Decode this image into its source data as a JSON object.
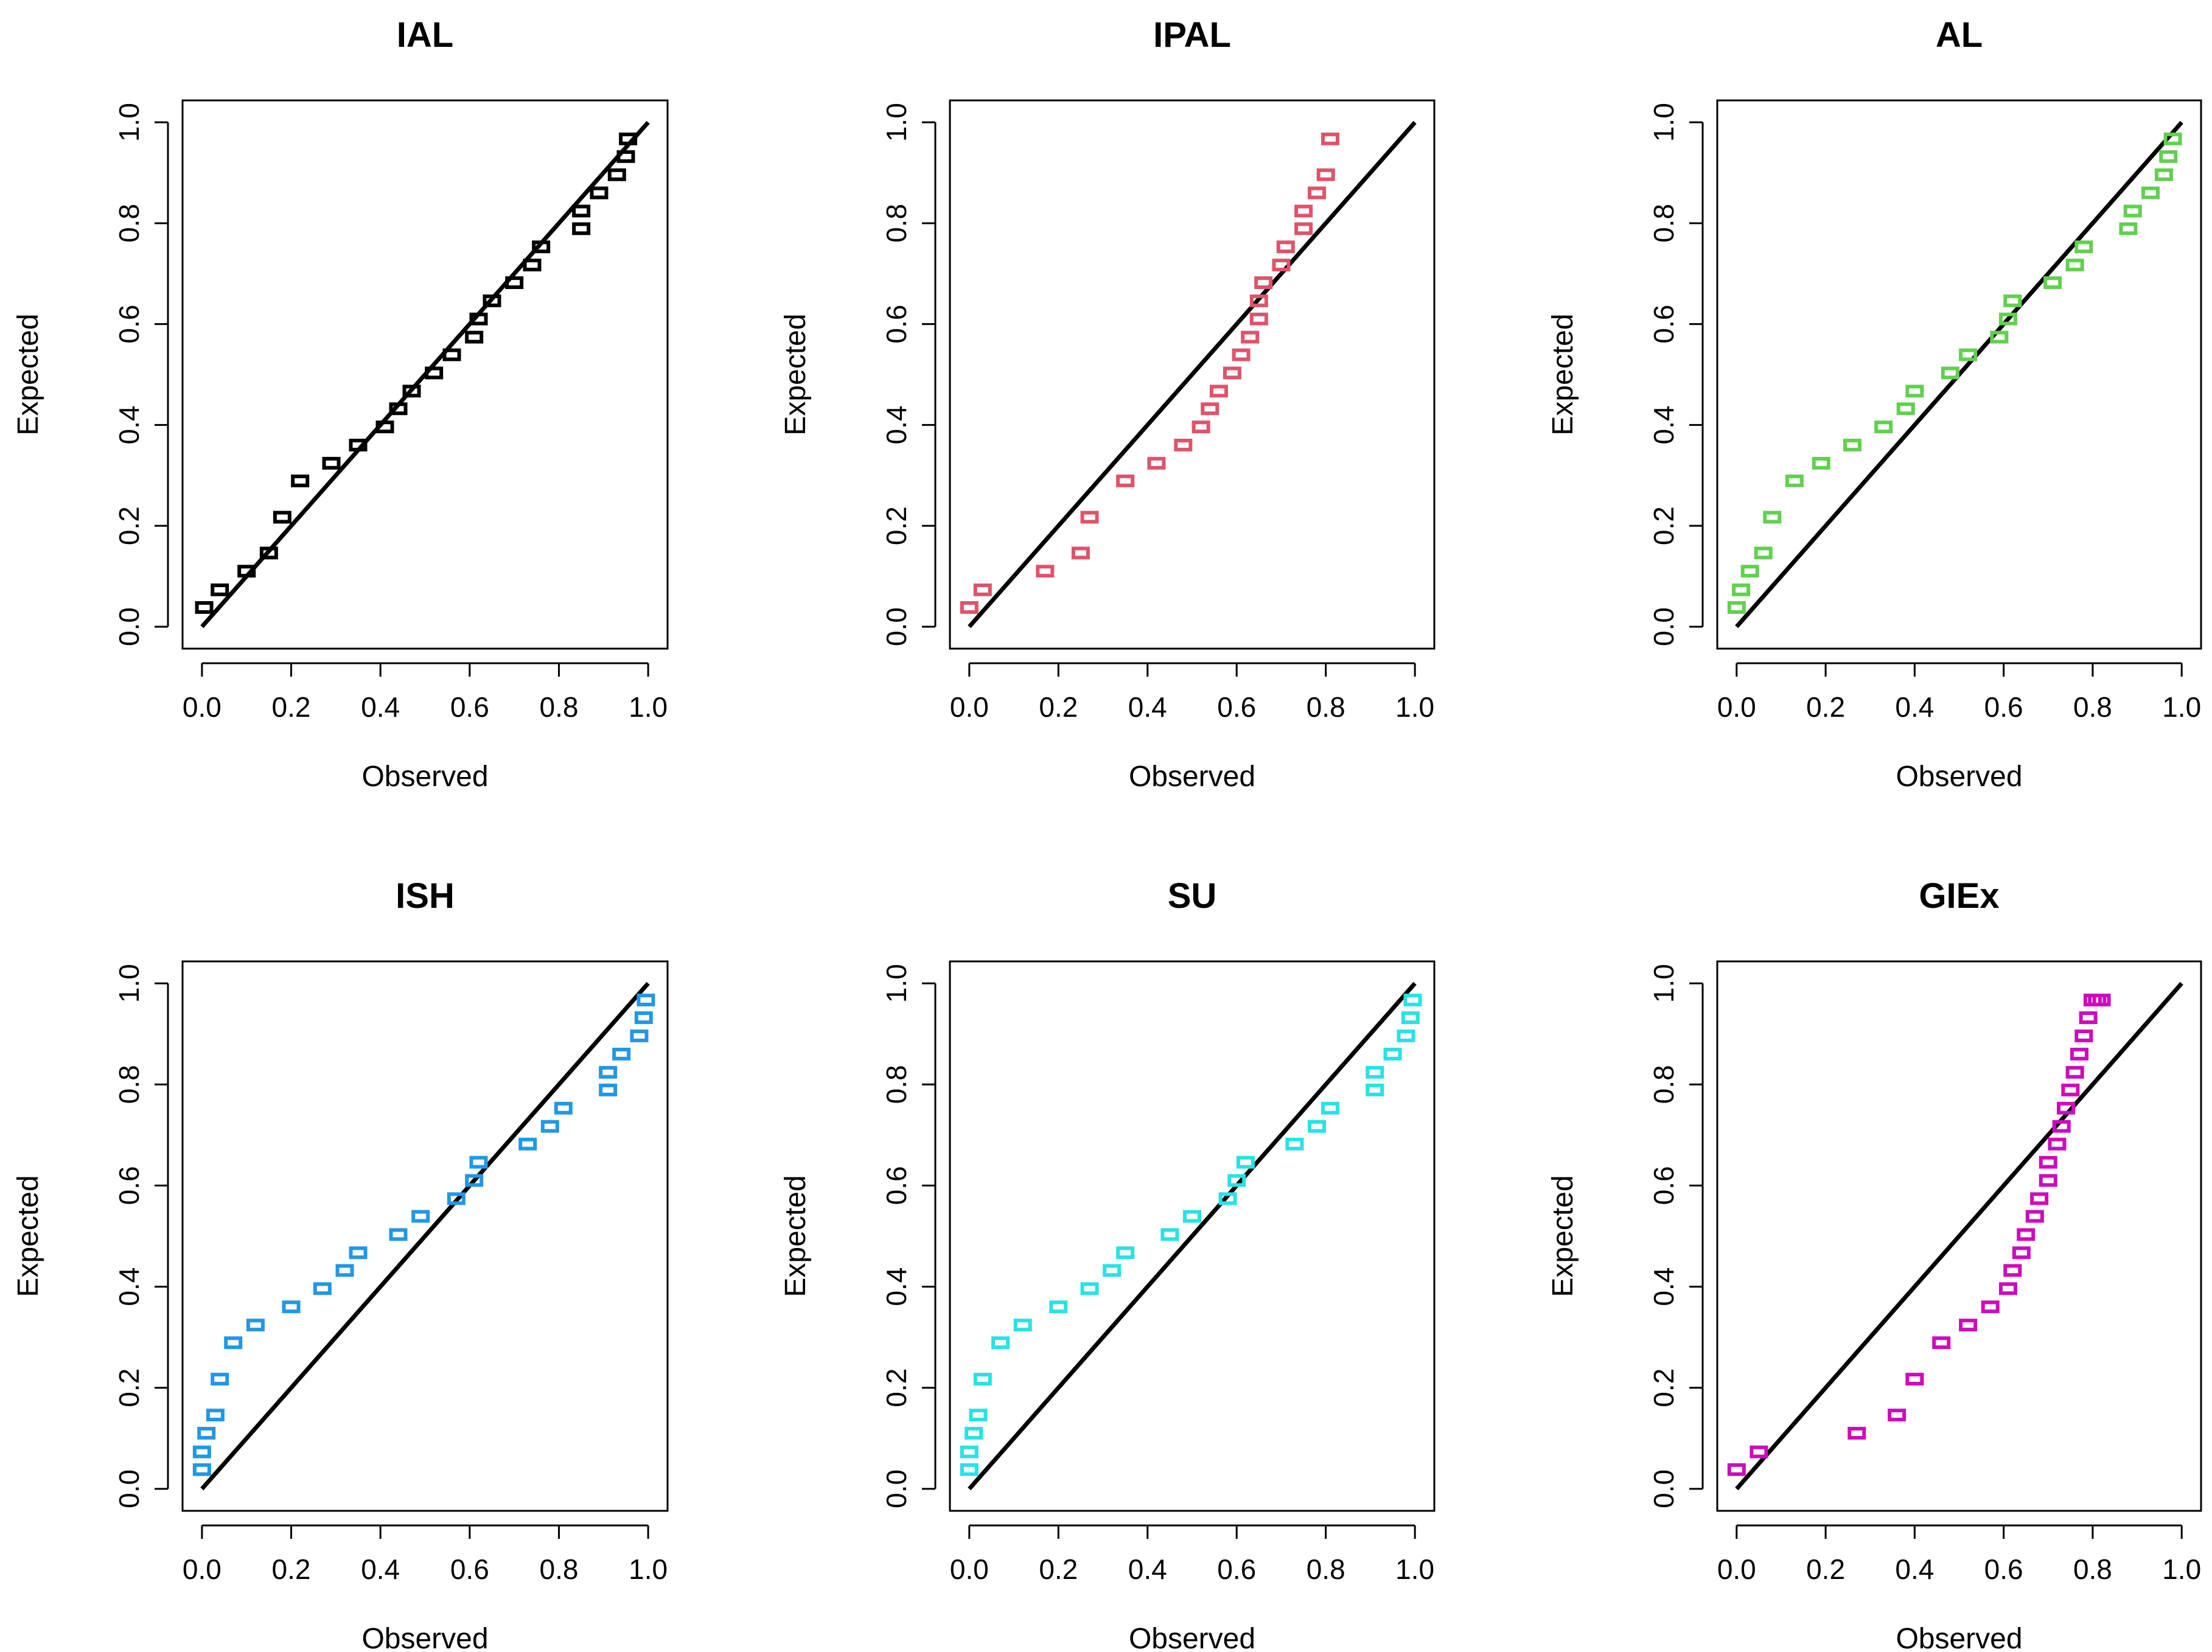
{
  "figure": {
    "x_label": "Observed",
    "y_label": "Expected",
    "tick_labels": [
      "0.0",
      "0.2",
      "0.4",
      "0.6",
      "0.8",
      "1.0"
    ],
    "reference_line_color": "#000000"
  },
  "chart_data": [
    {
      "type": "scatter",
      "title": "IAL",
      "xlabel": "Observed",
      "ylabel": "Expected",
      "xlim": [
        0,
        1
      ],
      "ylim": [
        0,
        1
      ],
      "color": "#000000",
      "reference_line": [
        [
          0,
          0
        ],
        [
          1,
          1
        ]
      ],
      "x": [
        0.005,
        0.04,
        0.1,
        0.15,
        0.18,
        0.22,
        0.29,
        0.35,
        0.41,
        0.44,
        0.47,
        0.52,
        0.56,
        0.61,
        0.62,
        0.65,
        0.7,
        0.74,
        0.76,
        0.85,
        0.85,
        0.89,
        0.93,
        0.95,
        0.955
      ],
      "y": [
        0.035,
        0.07,
        0.107,
        0.143,
        0.214,
        0.286,
        0.321,
        0.357,
        0.393,
        0.429,
        0.464,
        0.5,
        0.536,
        0.571,
        0.607,
        0.643,
        0.679,
        0.714,
        0.75,
        0.786,
        0.821,
        0.857,
        0.893,
        0.929,
        0.964
      ]
    },
    {
      "type": "scatter",
      "title": "IPAL",
      "xlabel": "Observed",
      "ylabel": "Expected",
      "xlim": [
        0,
        1
      ],
      "ylim": [
        0,
        1
      ],
      "color": "#df536b",
      "reference_line": [
        [
          0,
          0
        ],
        [
          1,
          1
        ]
      ],
      "x": [
        0.0,
        0.03,
        0.17,
        0.25,
        0.27,
        0.35,
        0.42,
        0.48,
        0.52,
        0.54,
        0.56,
        0.59,
        0.61,
        0.63,
        0.65,
        0.65,
        0.66,
        0.7,
        0.71,
        0.75,
        0.75,
        0.78,
        0.8,
        0.81
      ],
      "y": [
        0.035,
        0.07,
        0.107,
        0.143,
        0.214,
        0.286,
        0.321,
        0.357,
        0.393,
        0.429,
        0.464,
        0.5,
        0.536,
        0.571,
        0.607,
        0.643,
        0.679,
        0.714,
        0.75,
        0.786,
        0.821,
        0.857,
        0.893,
        0.964
      ]
    },
    {
      "type": "scatter",
      "title": "AL",
      "xlabel": "Observed",
      "ylabel": "Expected",
      "xlim": [
        0,
        1
      ],
      "ylim": [
        0,
        1
      ],
      "color": "#61d04f",
      "reference_line": [
        [
          0,
          0
        ],
        [
          1,
          1
        ]
      ],
      "x": [
        0.0,
        0.01,
        0.03,
        0.06,
        0.08,
        0.13,
        0.19,
        0.26,
        0.33,
        0.38,
        0.4,
        0.48,
        0.52,
        0.59,
        0.61,
        0.62,
        0.71,
        0.76,
        0.78,
        0.88,
        0.89,
        0.93,
        0.96,
        0.97,
        0.98
      ],
      "y": [
        0.035,
        0.07,
        0.107,
        0.143,
        0.214,
        0.286,
        0.321,
        0.357,
        0.393,
        0.429,
        0.464,
        0.5,
        0.536,
        0.571,
        0.607,
        0.643,
        0.679,
        0.714,
        0.75,
        0.786,
        0.821,
        0.857,
        0.893,
        0.929,
        0.964
      ]
    },
    {
      "type": "scatter",
      "title": "ISH",
      "xlabel": "Observed",
      "ylabel": "Expected",
      "xlim": [
        0,
        1
      ],
      "ylim": [
        0,
        1
      ],
      "color": "#2297e6",
      "reference_line": [
        [
          0,
          0
        ],
        [
          1,
          1
        ]
      ],
      "x": [
        0.0,
        0.0,
        0.01,
        0.03,
        0.04,
        0.07,
        0.12,
        0.2,
        0.27,
        0.32,
        0.35,
        0.44,
        0.49,
        0.57,
        0.61,
        0.62,
        0.73,
        0.78,
        0.81,
        0.91,
        0.91,
        0.94,
        0.98,
        0.99,
        0.995
      ],
      "y": [
        0.035,
        0.07,
        0.107,
        0.143,
        0.214,
        0.286,
        0.321,
        0.357,
        0.393,
        0.429,
        0.464,
        0.5,
        0.536,
        0.571,
        0.607,
        0.643,
        0.679,
        0.714,
        0.75,
        0.786,
        0.821,
        0.857,
        0.893,
        0.929,
        0.964
      ]
    },
    {
      "type": "scatter",
      "title": "SU",
      "xlabel": "Observed",
      "ylabel": "Expected",
      "xlim": [
        0,
        1
      ],
      "ylim": [
        0,
        1
      ],
      "color": "#28e2e5",
      "reference_line": [
        [
          0,
          0
        ],
        [
          1,
          1
        ]
      ],
      "x": [
        0.0,
        0.0,
        0.01,
        0.02,
        0.03,
        0.07,
        0.12,
        0.2,
        0.27,
        0.32,
        0.35,
        0.45,
        0.5,
        0.58,
        0.6,
        0.62,
        0.73,
        0.78,
        0.81,
        0.91,
        0.91,
        0.95,
        0.98,
        0.99,
        0.995
      ],
      "y": [
        0.035,
        0.07,
        0.107,
        0.143,
        0.214,
        0.286,
        0.321,
        0.357,
        0.393,
        0.429,
        0.464,
        0.5,
        0.536,
        0.571,
        0.607,
        0.643,
        0.679,
        0.714,
        0.75,
        0.786,
        0.821,
        0.857,
        0.893,
        0.929,
        0.964
      ]
    },
    {
      "type": "scatter",
      "title": "GIEx",
      "xlabel": "Observed",
      "ylabel": "Expected",
      "xlim": [
        0,
        1
      ],
      "ylim": [
        0,
        1
      ],
      "color": "#cd0bbc",
      "reference_line": [
        [
          0,
          0
        ],
        [
          1,
          1
        ]
      ],
      "x": [
        0.0,
        0.05,
        0.27,
        0.36,
        0.4,
        0.46,
        0.52,
        0.57,
        0.61,
        0.62,
        0.64,
        0.65,
        0.67,
        0.68,
        0.7,
        0.7,
        0.72,
        0.73,
        0.74,
        0.75,
        0.76,
        0.77,
        0.78,
        0.79,
        0.8,
        0.81,
        0.82
      ],
      "y": [
        0.035,
        0.07,
        0.107,
        0.143,
        0.214,
        0.286,
        0.321,
        0.357,
        0.393,
        0.429,
        0.464,
        0.5,
        0.536,
        0.571,
        0.607,
        0.643,
        0.679,
        0.714,
        0.75,
        0.786,
        0.821,
        0.857,
        0.893,
        0.929,
        0.964,
        0.964,
        0.964
      ]
    }
  ]
}
